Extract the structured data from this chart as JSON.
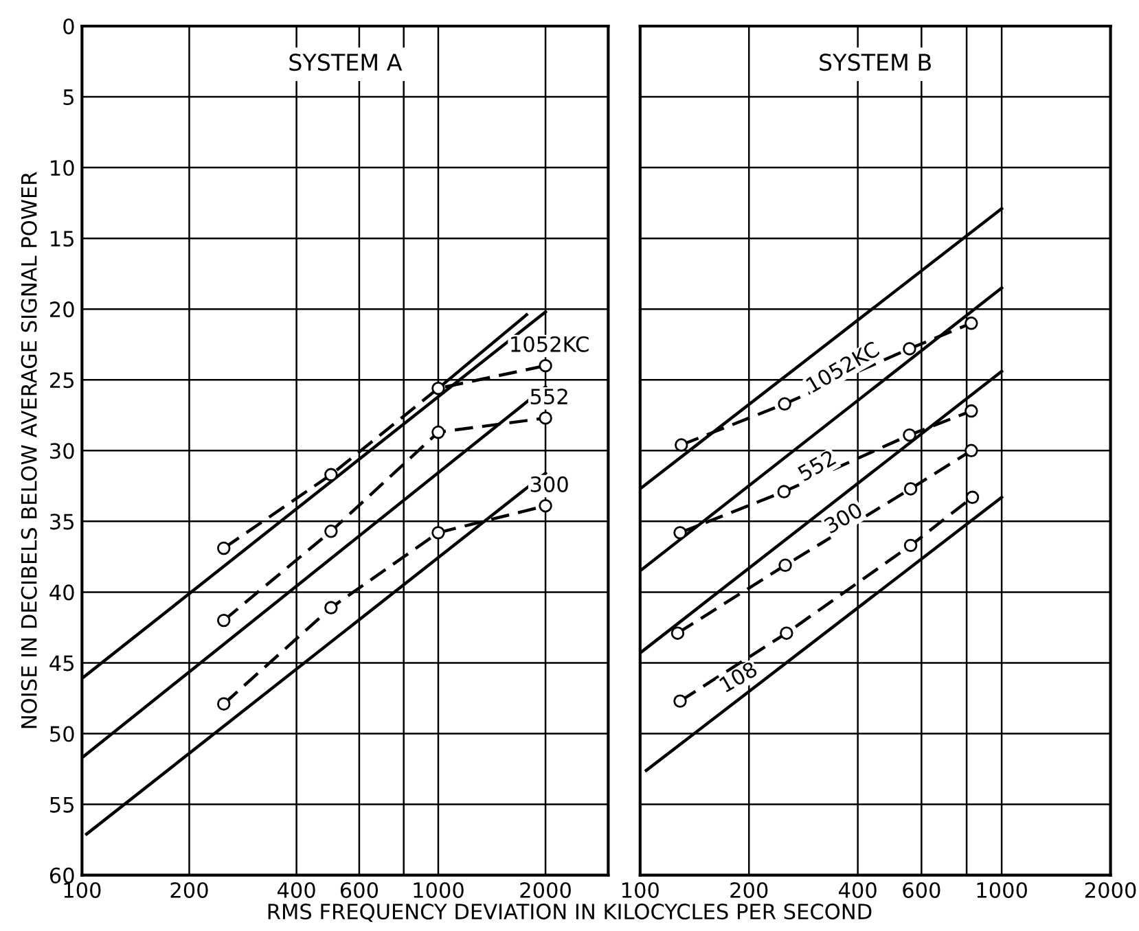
{
  "chart_data": [
    {
      "type": "line",
      "title": "SYSTEM A",
      "xlabel": "RMS FREQUENCY DEVIATION IN KILOCYCLES PER SECOND",
      "ylabel": "NOISE IN DECIBELS BELOW AVERAGE SIGNAL POWER",
      "log": "x",
      "xlim": [
        100,
        3000
      ],
      "xticks": [
        100,
        200,
        400,
        600,
        {
          "value": 800,
          "label": null
        },
        1000,
        2000
      ],
      "ylim": [
        60,
        0
      ],
      "yticks": [
        0,
        5,
        10,
        15,
        20,
        25,
        30,
        35,
        40,
        45,
        50,
        55,
        60
      ],
      "grid": true,
      "legend": false,
      "series": [
        {
          "color": "#000000",
          "marker": "none",
          "line_style": "solid",
          "x": [
            100,
            2000
          ],
          "values": [
            46.1,
            20.2
          ]
        },
        {
          "color": "#000000",
          "line_style": "solid",
          "x": [
            1000,
            1770
          ],
          "values": [
            25.6,
            20.4
          ]
        },
        {
          "color": "#000000",
          "marker": "none",
          "line_style": "solid",
          "x": [
            100,
            2000
          ],
          "values": [
            51.7,
            25.5
          ]
        },
        {
          "color": "#000000",
          "marker": "none",
          "line_style": "solid",
          "x": [
            103,
            2000
          ],
          "values": [
            57.1,
            31.6
          ]
        },
        {
          "name": "1052KC",
          "color": "#000000",
          "marker": "circle",
          "line_style": "dashed",
          "x": [
            250,
            500,
            1000,
            2000
          ],
          "values": [
            36.9,
            31.7,
            25.6,
            24.0
          ]
        },
        {
          "name": "552",
          "color": "#000000",
          "marker": "circle",
          "line_style": "dashed",
          "x": [
            250,
            500,
            1000,
            2000
          ],
          "values": [
            42.0,
            35.7,
            28.7,
            27.7
          ]
        },
        {
          "name": "300",
          "color": "#000000",
          "marker": "circle",
          "line_style": "dashed",
          "x": [
            250,
            500,
            1000,
            2000
          ],
          "values": [
            47.9,
            41.1,
            35.8,
            33.9
          ]
        }
      ]
    },
    {
      "type": "line",
      "title": "SYSTEM B",
      "log": "x",
      "xlim": [
        100,
        2000
      ],
      "xticks": [
        100,
        200,
        400,
        600,
        {
          "value": 800,
          "label": null
        },
        1000,
        2000
      ],
      "ylim": [
        60,
        0
      ],
      "yticks": [
        0,
        5,
        10,
        15,
        20,
        25,
        30,
        35,
        40,
        45,
        50,
        55,
        60
      ],
      "tick_labels": "x",
      "grid": true,
      "legend": false,
      "series": [
        {
          "color": "#000000",
          "marker": "none",
          "line_style": "solid",
          "x": [
            100,
            1000
          ],
          "values": [
            32.7,
            12.9
          ]
        },
        {
          "color": "#000000",
          "marker": "none",
          "line_style": "solid",
          "x": [
            100,
            1000
          ],
          "values": [
            38.5,
            18.5
          ]
        },
        {
          "color": "#000000",
          "marker": "none",
          "line_style": "solid",
          "x": [
            100,
            1000
          ],
          "values": [
            44.3,
            24.4
          ]
        },
        {
          "color": "#000000",
          "marker": "none",
          "line_style": "solid",
          "x": [
            104,
            1000
          ],
          "values": [
            52.6,
            33.3
          ]
        },
        {
          "name": "1052KC",
          "color": "#000000",
          "marker": "circle",
          "line_style": "dashed",
          "x": [
            130,
            251,
            556,
            824
          ],
          "values": [
            29.6,
            26.7,
            22.8,
            21.0
          ]
        },
        {
          "name": "552",
          "color": "#000000",
          "marker": "circle",
          "line_style": "dashed",
          "x": [
            129,
            250,
            556,
            824
          ],
          "values": [
            35.8,
            32.9,
            28.9,
            27.2
          ]
        },
        {
          "name": "300",
          "color": "#000000",
          "marker": "circle",
          "line_style": "dashed",
          "x": [
            127,
            252,
            560,
            824
          ],
          "values": [
            42.9,
            38.1,
            32.7,
            30.0
          ]
        },
        {
          "name": "108",
          "color": "#000000",
          "marker": "circle",
          "line_style": "dashed",
          "x": [
            129,
            254,
            560,
            830
          ],
          "values": [
            47.7,
            42.9,
            36.7,
            33.3
          ]
        }
      ]
    }
  ]
}
